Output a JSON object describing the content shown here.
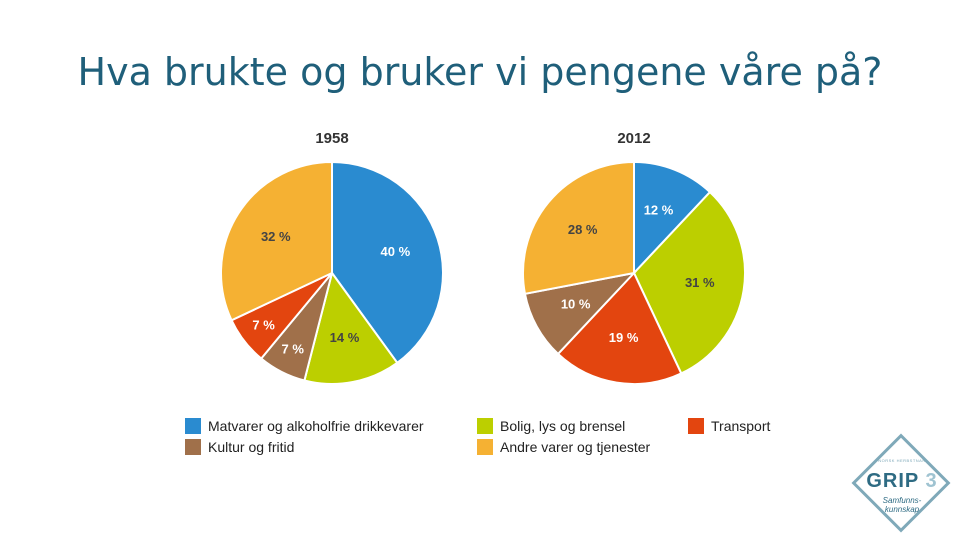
{
  "title": "Hva brukte og bruker vi pengene våre på?",
  "colors": {
    "blue": "#2a8bd0",
    "green": "#bccf00",
    "red": "#e3450f",
    "brown": "#a0704a",
    "orange": "#f5b133"
  },
  "chart_data": [
    {
      "type": "pie",
      "title": "1958",
      "slices": [
        {
          "category": "Matvarer og alkoholfrie drikkevarer",
          "value": 40,
          "label": "40 %",
          "color": "#2a8bd0"
        },
        {
          "category": "Bolig, lys og brensel",
          "value": 14,
          "label": "14 %",
          "color": "#bccf00"
        },
        {
          "category": "Kultur og fritid",
          "value": 7,
          "label": "7 %",
          "color": "#a0704a"
        },
        {
          "category": "Transport",
          "value": 7,
          "label": "7 %",
          "color": "#e3450f"
        },
        {
          "category": "Andre varer og tjenester",
          "value": 32,
          "label": "32 %",
          "color": "#f5b133"
        }
      ]
    },
    {
      "type": "pie",
      "title": "2012",
      "slices": [
        {
          "category": "Matvarer og alkoholfrie drikkevarer",
          "value": 12,
          "label": "12 %",
          "color": "#2a8bd0"
        },
        {
          "category": "Bolig, lys og brensel",
          "value": 31,
          "label": "31 %",
          "color": "#bccf00"
        },
        {
          "category": "Transport",
          "value": 19,
          "label": "19 %",
          "color": "#e3450f"
        },
        {
          "category": "Kultur og fritid",
          "value": 10,
          "label": "10 %",
          "color": "#a0704a"
        },
        {
          "category": "Andre varer og tjenester",
          "value": 28,
          "label": "28 %",
          "color": "#f5b133"
        }
      ]
    }
  ],
  "legend": [
    {
      "label": "Matvarer og alkoholfrie drikkevarer",
      "color": "#2a8bd0"
    },
    {
      "label": "Bolig, lys og brensel",
      "color": "#bccf00"
    },
    {
      "label": "Transport",
      "color": "#e3450f"
    },
    {
      "label": "Kultur og fritid",
      "color": "#a0704a"
    },
    {
      "label": "Andre varer og tjenester",
      "color": "#f5b133"
    }
  ],
  "logo": {
    "top_text": "NORSK HERBSTNAR",
    "main": "GRIP",
    "number": "3",
    "sub_line1": "Samfunns-",
    "sub_line2": "kunnskap"
  }
}
